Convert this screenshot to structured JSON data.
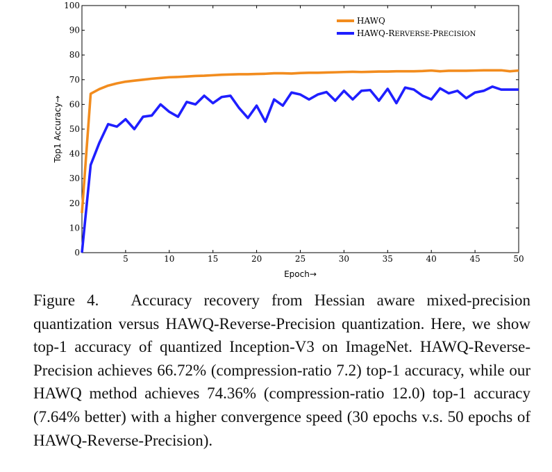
{
  "chart_data": {
    "type": "line",
    "title": "",
    "xlabel": "Epoch→",
    "ylabel": "Top1 Accuracy→",
    "xlim": [
      0,
      50
    ],
    "ylim": [
      0,
      100
    ],
    "x_ticks": [
      5,
      10,
      15,
      20,
      25,
      30,
      35,
      40,
      45,
      50
    ],
    "y_ticks": [
      0,
      10,
      20,
      30,
      40,
      50,
      60,
      70,
      80,
      90,
      100
    ],
    "legend_position": "top-right",
    "series": [
      {
        "name": "HAWQ",
        "color": "#F28C1E",
        "x": [
          0,
          1,
          2,
          3,
          4,
          5,
          6,
          7,
          8,
          9,
          10,
          11,
          12,
          13,
          14,
          15,
          16,
          17,
          18,
          19,
          20,
          21,
          22,
          23,
          24,
          25,
          26,
          27,
          28,
          29,
          30,
          31,
          32,
          33,
          34,
          35,
          36,
          37,
          38,
          39,
          40,
          41,
          42,
          43,
          44,
          45,
          46,
          47,
          48,
          49,
          50
        ],
        "values": [
          16.0,
          64.3,
          66.2,
          67.6,
          68.5,
          69.2,
          69.6,
          70.0,
          70.4,
          70.7,
          71.0,
          71.1,
          71.3,
          71.5,
          71.6,
          71.8,
          72.0,
          72.1,
          72.2,
          72.2,
          72.3,
          72.4,
          72.6,
          72.6,
          72.5,
          72.7,
          72.8,
          72.8,
          72.9,
          73.0,
          73.1,
          73.2,
          73.1,
          73.2,
          73.3,
          73.3,
          73.4,
          73.4,
          73.4,
          73.5,
          73.7,
          73.4,
          73.6,
          73.6,
          73.6,
          73.7,
          73.8,
          73.8,
          73.8,
          73.4,
          73.7
        ]
      },
      {
        "name": "HAWQ-Rerverse-Precision",
        "legend_parts": [
          "HAWQ-",
          "R",
          "ERVERSE",
          "-P",
          "RECISION"
        ],
        "color": "#1F1FFF",
        "x": [
          0,
          1,
          2,
          3,
          4,
          5,
          6,
          7,
          8,
          9,
          10,
          11,
          12,
          13,
          14,
          15,
          16,
          17,
          18,
          19,
          20,
          21,
          22,
          23,
          24,
          25,
          26,
          27,
          28,
          29,
          30,
          31,
          32,
          33,
          34,
          35,
          36,
          37,
          38,
          39,
          40,
          41,
          42,
          43,
          44,
          45,
          46,
          47,
          48,
          49,
          50
        ],
        "values": [
          0.0,
          35.5,
          44.5,
          52.0,
          51.0,
          54.0,
          50.0,
          55.0,
          55.5,
          60.0,
          57.0,
          55.0,
          61.0,
          60.0,
          63.5,
          60.5,
          63.0,
          63.5,
          58.5,
          54.5,
          59.5,
          53.0,
          62.0,
          59.5,
          64.8,
          64.0,
          62.0,
          64.0,
          65.0,
          61.5,
          65.5,
          62.0,
          65.5,
          65.8,
          61.5,
          66.3,
          60.5,
          66.8,
          66.0,
          63.5,
          62.0,
          66.5,
          64.5,
          65.5,
          62.5,
          64.8,
          65.5,
          67.2,
          66.0,
          66.0,
          66.0
        ]
      }
    ]
  },
  "caption": {
    "label": "Figure 4.",
    "text": "Accuracy recovery from Hessian aware mixed-precision quantization versus HAWQ-Reverse-Precision quantization. Here, we show top-1 accuracy of quantized Inception-V3 on ImageNet. HAWQ-Reverse-Precision achieves 66.72% (compression-ratio 7.2) top-1 accuracy, while our HAWQ method achieves 74.36% (compression-ratio 12.0) top-1 accuracy (7.64% better) with a higher convergence speed (30 epochs v.s. 50 epochs of HAWQ-Reverse-Precision)."
  }
}
